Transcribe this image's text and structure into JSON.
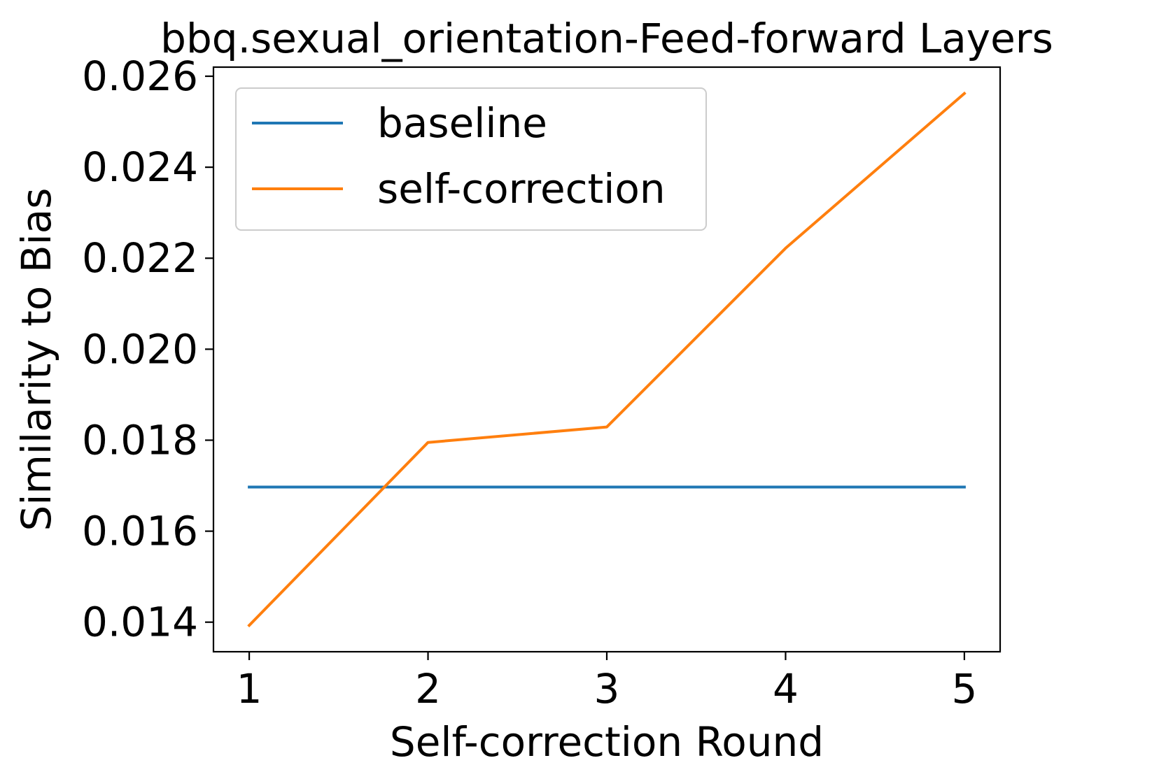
{
  "chart_data": {
    "type": "line",
    "title": "bbq.sexual_orientation-Feed-forward Layers",
    "xlabel": "Self-correction Round",
    "ylabel": "Similarity to Bias",
    "x": [
      1,
      2,
      3,
      4,
      5
    ],
    "xticks": [
      "1",
      "2",
      "3",
      "4",
      "5"
    ],
    "yticks": [
      0.014,
      0.016,
      0.018,
      0.02,
      0.022,
      0.024,
      0.026
    ],
    "ytick_labels": [
      "0.014",
      "0.016",
      "0.018",
      "0.020",
      "0.022",
      "0.024",
      "0.026"
    ],
    "xlim": [
      0.8,
      5.2
    ],
    "ylim": [
      0.01335,
      0.0262
    ],
    "grid": false,
    "legend_position": "upper-left",
    "series": [
      {
        "name": "baseline",
        "color": "#1f77b4",
        "values": [
          0.01697,
          0.01697,
          0.01697,
          0.01697,
          0.01697
        ]
      },
      {
        "name": "self-correction",
        "color": "#ff7f0e",
        "values": [
          0.01393,
          0.01795,
          0.01829,
          0.02222,
          0.02562
        ]
      }
    ]
  }
}
